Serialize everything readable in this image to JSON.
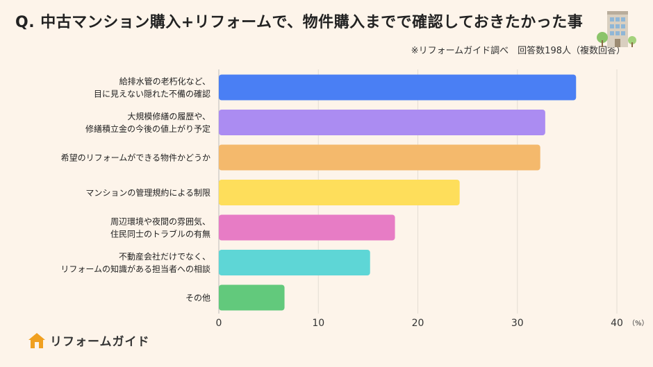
{
  "header": {
    "title": "Q. 中古マンション購入+リフォームで、物件購入までで確認しておきたかった事",
    "source": "※リフォームガイド調べ　回答数198人（複数回答）"
  },
  "brand": {
    "name": "リフォームガイド",
    "color": "#f0a020"
  },
  "chart_data": {
    "type": "bar",
    "orientation": "horizontal",
    "categories": [
      [
        "給排水管の老朽化など、",
        "目に見えない隠れた不備の確認"
      ],
      [
        "大規模修繕の履歴や、",
        "修繕積立金の今後の値上がり予定"
      ],
      [
        "希望のリフォームができる物件かどうか"
      ],
      [
        "マンションの管理規約による制限"
      ],
      [
        "周辺環境や夜間の雰囲気、",
        "住民同士のトラブルの有無"
      ],
      [
        "不動産会社だけでなく、",
        "リフォームの知識がある担当者への相談"
      ],
      [
        "その他"
      ]
    ],
    "values": [
      35.9,
      32.8,
      32.3,
      24.2,
      17.7,
      15.2,
      6.6
    ],
    "colors": [
      "#4a7ff4",
      "#ab8cf2",
      "#f4b96c",
      "#fede5b",
      "#e77cc5",
      "#5ed6d6",
      "#62c97c"
    ],
    "xlim": [
      0,
      40
    ],
    "xticks": [
      0,
      10,
      20,
      30,
      40
    ],
    "unit": "（%）",
    "grid": true
  }
}
